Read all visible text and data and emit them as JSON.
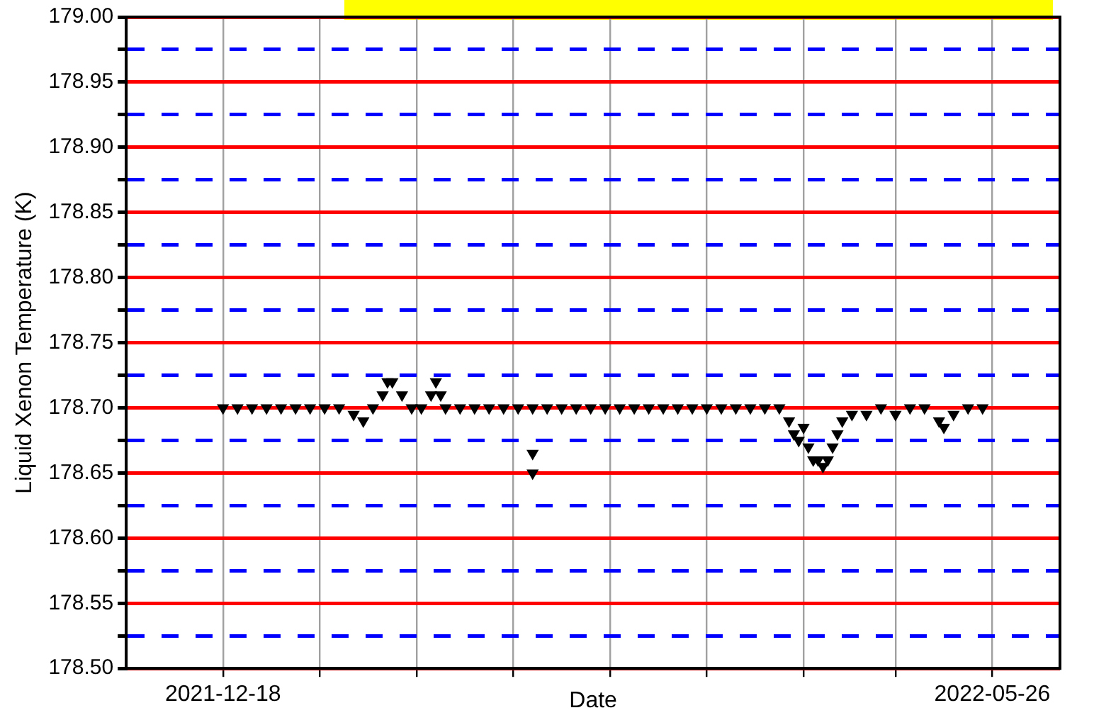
{
  "chart_data": {
    "type": "scatter",
    "xlabel": "Date",
    "ylabel": "Liquid Xenon Temperature (K)",
    "xlim": [
      "2021-11-28",
      "2022-06-09"
    ],
    "xticks": [
      "2021-12-18",
      {
        "value": "2022-01-07",
        "label": null
      },
      {
        "value": "2022-01-27",
        "label": null
      },
      {
        "value": "2022-02-16",
        "label": null
      },
      {
        "value": "2022-03-08",
        "label": null
      },
      {
        "value": "2022-03-28",
        "label": null
      },
      {
        "value": "2022-04-17",
        "label": null
      },
      {
        "value": "2022-05-06",
        "label": null
      },
      "2022-05-26"
    ],
    "ylim": [
      178.5,
      179.0
    ],
    "yticks": [
      {
        "value": 178.5,
        "label": "178.50"
      },
      {
        "value": 178.525,
        "label": null
      },
      {
        "value": 178.55,
        "label": "178.55"
      },
      {
        "value": 178.575,
        "label": null
      },
      {
        "value": 178.6,
        "label": "178.60"
      },
      {
        "value": 178.625,
        "label": null
      },
      {
        "value": 178.65,
        "label": "178.65"
      },
      {
        "value": 178.675,
        "label": null
      },
      {
        "value": 178.7,
        "label": "178.70"
      },
      {
        "value": 178.725,
        "label": null
      },
      {
        "value": 178.75,
        "label": "178.75"
      },
      {
        "value": 178.775,
        "label": null
      },
      {
        "value": 178.8,
        "label": "178.80"
      },
      {
        "value": 178.825,
        "label": null
      },
      {
        "value": 178.85,
        "label": "178.85"
      },
      {
        "value": 178.875,
        "label": null
      },
      {
        "value": 178.9,
        "label": "178.90"
      },
      {
        "value": 178.925,
        "label": null
      },
      {
        "value": 178.95,
        "label": "178.95"
      },
      {
        "value": 178.975,
        "label": null
      },
      {
        "value": 179.0,
        "label": "179.00"
      }
    ],
    "grid": true,
    "legend": false,
    "marker": "triangle",
    "series": [
      {
        "color": "#000000",
        "x": [
          "2021-12-18",
          "2021-12-21",
          "2021-12-24",
          "2021-12-27",
          "2021-12-30",
          "2022-01-02",
          "2022-01-05",
          "2022-01-08",
          "2022-01-11",
          "2022-01-14",
          "2022-01-16",
          "2022-01-18",
          "2022-01-20",
          "2022-01-21",
          "2022-01-22",
          "2022-01-24",
          "2022-01-26",
          "2022-01-28",
          "2022-01-30",
          "2022-01-31",
          "2022-02-01",
          "2022-02-02",
          "2022-02-05",
          "2022-02-08",
          "2022-02-11",
          "2022-02-14",
          "2022-02-17",
          "2022-02-20",
          "2022-02-20",
          "2022-02-20",
          "2022-02-23",
          "2022-02-26",
          "2022-03-01",
          "2022-03-04",
          "2022-03-07",
          "2022-03-10",
          "2022-03-13",
          "2022-03-16",
          "2022-03-19",
          "2022-03-22",
          "2022-03-25",
          "2022-03-28",
          "2022-03-31",
          "2022-04-03",
          "2022-04-06",
          "2022-04-09",
          "2022-04-12",
          "2022-04-14",
          "2022-04-15",
          "2022-04-16",
          "2022-04-17",
          "2022-04-18",
          "2022-04-19",
          "2022-04-20",
          "2022-04-21",
          "2022-04-22",
          "2022-04-23",
          "2022-04-24",
          "2022-04-25",
          "2022-04-27",
          "2022-04-30",
          "2022-05-03",
          "2022-05-06",
          "2022-05-09",
          "2022-05-12",
          "2022-05-15",
          "2022-05-16",
          "2022-05-18",
          "2022-05-21",
          "2022-05-24"
        ],
        "values": [
          178.7,
          178.7,
          178.7,
          178.7,
          178.7,
          178.7,
          178.7,
          178.7,
          178.7,
          178.695,
          178.69,
          178.7,
          178.71,
          178.72,
          178.72,
          178.71,
          178.7,
          178.7,
          178.71,
          178.72,
          178.71,
          178.7,
          178.7,
          178.7,
          178.7,
          178.7,
          178.7,
          178.665,
          178.65,
          178.7,
          178.7,
          178.7,
          178.7,
          178.7,
          178.7,
          178.7,
          178.7,
          178.7,
          178.7,
          178.7,
          178.7,
          178.7,
          178.7,
          178.7,
          178.7,
          178.7,
          178.7,
          178.69,
          178.68,
          178.675,
          178.685,
          178.67,
          178.66,
          178.66,
          178.655,
          178.66,
          178.67,
          178.68,
          178.69,
          178.695,
          178.695,
          178.7,
          178.695,
          178.7,
          178.7,
          178.69,
          178.685,
          178.695,
          178.7,
          178.7
        ]
      }
    ]
  }
}
